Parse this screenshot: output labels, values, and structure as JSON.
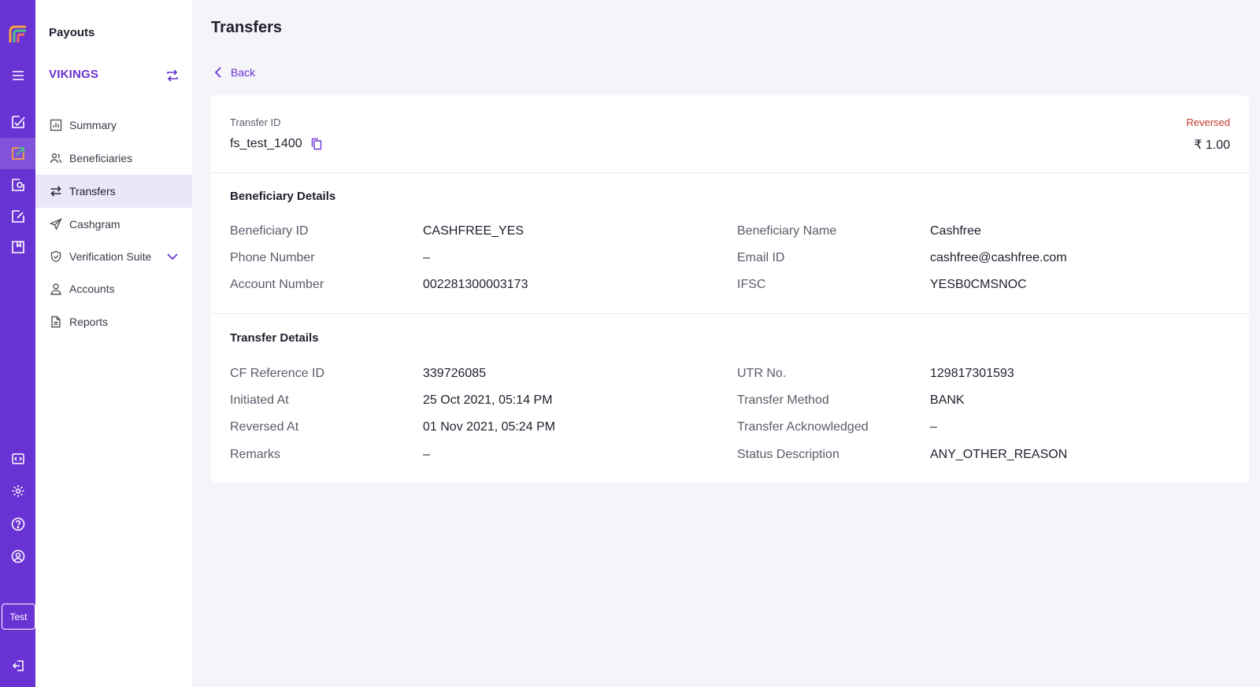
{
  "rail": {
    "items": [
      {
        "icon": "menu-icon"
      },
      {
        "icon": "edit-check-icon"
      },
      {
        "icon": "payouts-icon"
      },
      {
        "icon": "refund-icon"
      },
      {
        "icon": "document-edit-icon"
      },
      {
        "icon": "clipboard-icon"
      },
      {
        "icon": "developer-icon"
      },
      {
        "icon": "gear-icon"
      },
      {
        "icon": "help-icon"
      },
      {
        "icon": "user-circle-icon"
      },
      {
        "icon": "logout-icon"
      }
    ],
    "test_label": "Test"
  },
  "sidebar": {
    "title": "Payouts",
    "org_name": "VIKINGS",
    "items": [
      {
        "label": "Summary",
        "icon": "chart-icon"
      },
      {
        "label": "Beneficiaries",
        "icon": "users-icon"
      },
      {
        "label": "Transfers",
        "icon": "transfer-icon"
      },
      {
        "label": "Cashgram",
        "icon": "send-icon"
      },
      {
        "label": "Verification Suite",
        "icon": "shield-check-icon"
      },
      {
        "label": "Accounts",
        "icon": "user-icon"
      },
      {
        "label": "Reports",
        "icon": "file-icon"
      }
    ]
  },
  "header": {
    "title": "Transfers",
    "back_label": "Back"
  },
  "transfer": {
    "id_label": "Transfer ID",
    "id_value": "fs_test_1400",
    "status": "Reversed",
    "amount": "₹ 1.00"
  },
  "beneficiary": {
    "title": "Beneficiary Details",
    "fields": [
      {
        "label": "Beneficiary ID",
        "value": "CASHFREE_YES"
      },
      {
        "label": "Beneficiary Name",
        "value": "Cashfree"
      },
      {
        "label": "Phone Number",
        "value": "–"
      },
      {
        "label": "Email ID",
        "value": "cashfree@cashfree.com"
      },
      {
        "label": "Account Number",
        "value": "002281300003173"
      },
      {
        "label": "IFSC",
        "value": "YESB0CMSNOC"
      }
    ]
  },
  "transfer_details": {
    "title": "Transfer Details",
    "fields": [
      {
        "label": "CF Reference ID",
        "value": "339726085"
      },
      {
        "label": "UTR No.",
        "value": "129817301593"
      },
      {
        "label": "Initiated At",
        "value": "25 Oct 2021, 05:14 PM"
      },
      {
        "label": "Transfer Method",
        "value": "BANK"
      },
      {
        "label": "Reversed At",
        "value": "01 Nov 2021, 05:24 PM"
      },
      {
        "label": "Transfer Acknowledged",
        "value": "–"
      },
      {
        "label": "Remarks",
        "value": "–"
      },
      {
        "label": "Status Description",
        "value": "ANY_OTHER_REASON"
      }
    ]
  },
  "colors": {
    "brand": "#6933d3",
    "status_reversed": "#c0392b",
    "active_bg": "#ece6fb"
  }
}
